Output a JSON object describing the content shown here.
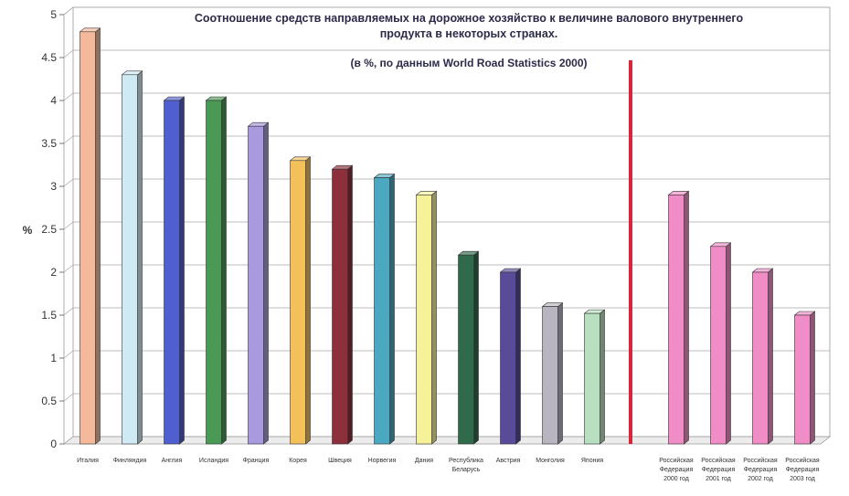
{
  "chart_data": {
    "type": "bar",
    "title_lines": [
      "Соотношение средств направляемых на дорожное хозяйство к величине валового внутреннего",
      "продукта в некоторых странах."
    ],
    "subtitle": "(в %, по данным World Road Statistics 2000)",
    "ylabel": "%",
    "ylim": [
      0,
      5
    ],
    "yticks": [
      "0",
      "0.5",
      "1",
      "1.5",
      "2",
      "2.5",
      "3",
      "3.5",
      "4",
      "4.5",
      "5"
    ],
    "grid": true,
    "categories": [
      [
        "Италия"
      ],
      [
        "Финляндия"
      ],
      [
        "Англия"
      ],
      [
        "Исландия"
      ],
      [
        "Франция"
      ],
      [
        "Корея"
      ],
      [
        "Швеция"
      ],
      [
        "Норвегия"
      ],
      [
        "Дания"
      ],
      [
        "Республика",
        "Беларусь"
      ],
      [
        "Австрия"
      ],
      [
        "Монголия"
      ],
      [
        "Япония"
      ],
      [],
      [
        "Российская",
        "Федерация",
        "2000 год"
      ],
      [
        "Российская",
        "Федерация",
        "2001 год"
      ],
      [
        "Российская",
        "Федерация",
        "2002 год"
      ],
      [
        "Российская",
        "Федерация",
        "2003 год"
      ]
    ],
    "values": [
      4.8,
      4.3,
      4.0,
      4.0,
      3.7,
      3.3,
      3.2,
      3.1,
      2.9,
      2.2,
      2.0,
      1.6,
      1.52,
      null,
      2.9,
      2.3,
      2.0,
      1.5
    ],
    "colors": [
      "#f4b89a",
      "#cfeaf2",
      "#4f5fcf",
      "#4a9a55",
      "#a99ae0",
      "#f4c05a",
      "#8e2f3c",
      "#4aa8c0",
      "#f6f29a",
      "#2f6a4a",
      "#5a4a9a",
      "#b8b4c0",
      "#b8e0c0",
      null,
      "#f08cc6",
      "#f08cc6",
      "#f08cc6",
      "#f08cc6"
    ],
    "divider_color": "#d9263a"
  }
}
